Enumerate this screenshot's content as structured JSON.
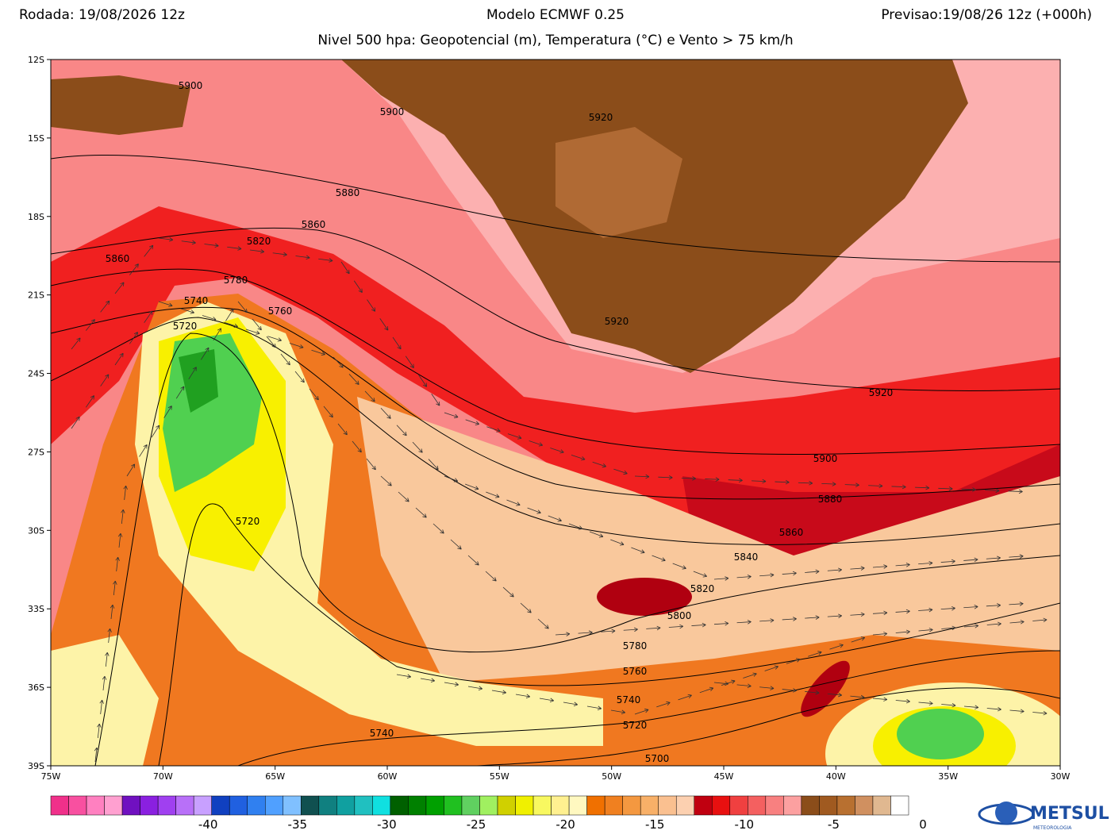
{
  "header": {
    "left": "Rodada: 19/08/2026 12z",
    "center": "Modelo ECMWF 0.25",
    "right": "Previsao:19/08/26 12z (+000h)",
    "subtitle": "Nivel 500 hpa: Geopotencial (m), Temperatura (°C) e Vento > 75 km/h"
  },
  "lat_labels": [
    "12S",
    "15S",
    "18S",
    "21S",
    "24S",
    "27S",
    "30S",
    "33S",
    "36S",
    "39S"
  ],
  "lon_labels": [
    "75W",
    "70W",
    "65W",
    "60W",
    "55W",
    "50W",
    "45W",
    "40W",
    "35W",
    "30W"
  ],
  "contour_labels": [
    "5900",
    "5900",
    "5920",
    "5880",
    "5860",
    "5820",
    "5860",
    "5780",
    "5740",
    "5760",
    "5720",
    "5920",
    "5920",
    "5900",
    "5880",
    "5860",
    "5840",
    "5820",
    "5800",
    "5720",
    "5780",
    "5760",
    "5740",
    "5720",
    "5740",
    "5700"
  ],
  "colorbar_labels": [
    "-40",
    "-35",
    "-30",
    "-25",
    "-20",
    "-15",
    "-10",
    "-5",
    "0"
  ],
  "logo": {
    "name": "METSUL",
    "sub": "METEOROLOGIA"
  }
}
